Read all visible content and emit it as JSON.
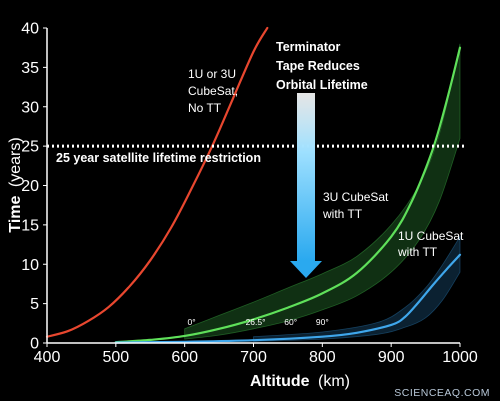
{
  "chart_data": {
    "type": "line",
    "xlabel": "Altitude",
    "xlabel_unit": "(km)",
    "ylabel": "Time",
    "ylabel_unit": "(years)",
    "xlim": [
      400,
      1000
    ],
    "ylim": [
      0,
      40
    ],
    "xticks": [
      400,
      500,
      600,
      700,
      800,
      900,
      1000
    ],
    "yticks": [
      0,
      5,
      10,
      15,
      20,
      25,
      30,
      35,
      40
    ],
    "grid": false,
    "reference_line": {
      "y": 25,
      "label": "25 year satellite lifetime restriction",
      "style": "dotted",
      "color": "#ffffff"
    },
    "series": [
      {
        "name": "1U or 3U CubeSat, No TT",
        "color": "#e8472f",
        "x": [
          400,
          430,
          460,
          490,
          520,
          550,
          580,
          610,
          640,
          670,
          700,
          720
        ],
        "y": [
          0.8,
          1.5,
          2.8,
          4.6,
          7.2,
          10.5,
          14.6,
          19.6,
          25.0,
          31.0,
          37.0,
          40.0
        ]
      },
      {
        "name": "3U CubeSat with TT",
        "color": "#5fe05a",
        "x": [
          500,
          550,
          600,
          650,
          700,
          750,
          800,
          850,
          900,
          930,
          960,
          980,
          1000
        ],
        "y": [
          0.1,
          0.4,
          0.9,
          1.8,
          3.0,
          4.5,
          6.3,
          8.9,
          13.5,
          18.0,
          24.5,
          30.5,
          37.5
        ]
      },
      {
        "name": "1U CubeSat with TT",
        "color": "#3fa7ec",
        "x": [
          500,
          600,
          700,
          800,
          850,
          900,
          920,
          940,
          960,
          980,
          1000
        ],
        "y": [
          0.05,
          0.15,
          0.35,
          0.8,
          1.3,
          2.3,
          3.3,
          5.2,
          7.3,
          9.3,
          11.2
        ]
      }
    ],
    "envelopes": [
      {
        "series": "3U CubeSat with TT",
        "color": "#2f8a36",
        "x": [
          600,
          650,
          700,
          750,
          800,
          850,
          900,
          940,
          970,
          1000
        ],
        "y_low": [
          0.5,
          1.0,
          1.8,
          2.8,
          4.2,
          6.0,
          9.0,
          13.0,
          18.0,
          26.0
        ],
        "y_high": [
          1.8,
          3.5,
          5.2,
          7.0,
          8.8,
          11.0,
          15.0,
          20.0,
          26.5,
          38.0
        ]
      },
      {
        "series": "1U CubeSat with TT",
        "color": "#1f5f8c",
        "x": [
          700,
          800,
          880,
          920,
          950,
          975,
          1000
        ],
        "y_low": [
          0.2,
          0.5,
          1.1,
          2.0,
          3.2,
          5.5,
          9.0
        ],
        "y_high": [
          0.8,
          1.4,
          2.6,
          4.5,
          7.0,
          10.0,
          13.5
        ]
      }
    ],
    "annotations": {
      "red_label": [
        "1U or 3U",
        "CubeSat,",
        "No TT"
      ],
      "green_label": [
        "3U CubeSat",
        "with TT"
      ],
      "blue_label": [
        "1U CubeSat",
        "with TT"
      ],
      "terminator_note": [
        "Terminator",
        "Tape Reduces",
        "Orbital Lifetime"
      ],
      "angles": [
        {
          "text": "0°",
          "x": 610,
          "y": 2.3
        },
        {
          "text": "26.5°",
          "x": 703,
          "y": 2.3
        },
        {
          "text": "60°",
          "x": 754,
          "y": 2.3
        },
        {
          "text": "90°",
          "x": 800,
          "y": 2.3
        }
      ],
      "arrow_color": "#38b8f2"
    },
    "credit": "SCIENCEAQ.COM"
  }
}
